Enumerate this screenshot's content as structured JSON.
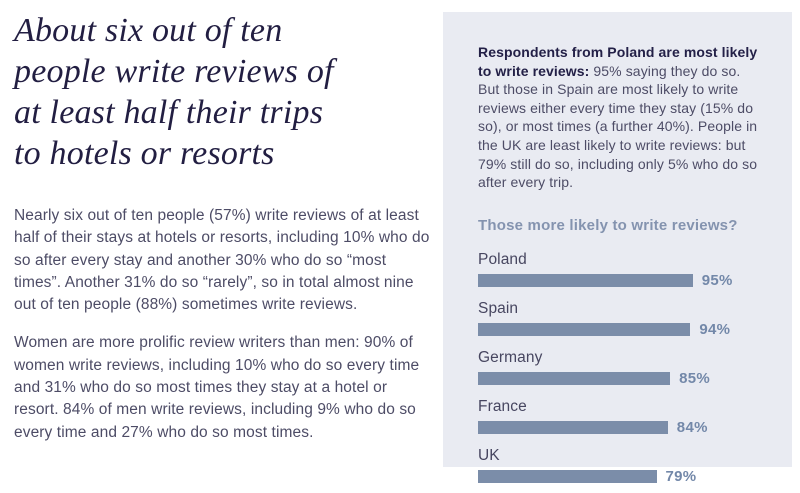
{
  "page": {
    "headline_lines": {
      "l1": "About six out of ten",
      "l2": "people write reviews of",
      "l3": "at least half their trips",
      "l4": "to hotels or resorts"
    },
    "paragraphs": {
      "p1": "Nearly six out of ten people (57%) write reviews of at least half of their stays at hotels or resorts, including 10% who do so after every stay and another 30% who do so “most times”. Another 31% do so “rarely”, so in total almost nine out of ten people (88%) sometimes write reviews.",
      "p2": "Women are more prolific review writers than men: 90% of women write reviews, including 10% who do so every time and 31% who do so most times they stay at a hotel or resort. 84% of men write reviews, including 9% who do so every time and 27% who do so most times."
    },
    "colors": {
      "heading": "#221e42",
      "body": "#4d4c66"
    }
  },
  "panel": {
    "intro_bold": "Respondents from Poland are most likely to write reviews:",
    "intro_rest": " 95% saying they do so. But those in Spain are most likely to write reviews either every time they stay (15% do so), or most times (a further 40%). People in the UK are least likely to write reviews: but 79% still do so, including only 5% who do so after every trip.",
    "colors": {
      "background": "#e9ebf2",
      "bar": "#7b8da9",
      "value_label": "#7388a9",
      "chart_title": "#8493af",
      "bold_text": "#232047"
    }
  },
  "chart_data": {
    "type": "bar",
    "orientation": "horizontal",
    "title": "Those more likely to write reviews?",
    "categories": [
      "Poland",
      "Spain",
      "Germany",
      "France",
      "UK"
    ],
    "values": [
      95,
      94,
      85,
      84,
      79
    ],
    "value_labels": [
      "95%",
      "94%",
      "85%",
      "84%",
      "79%"
    ],
    "xlim": [
      0,
      100
    ],
    "grid": false,
    "legend": false
  }
}
